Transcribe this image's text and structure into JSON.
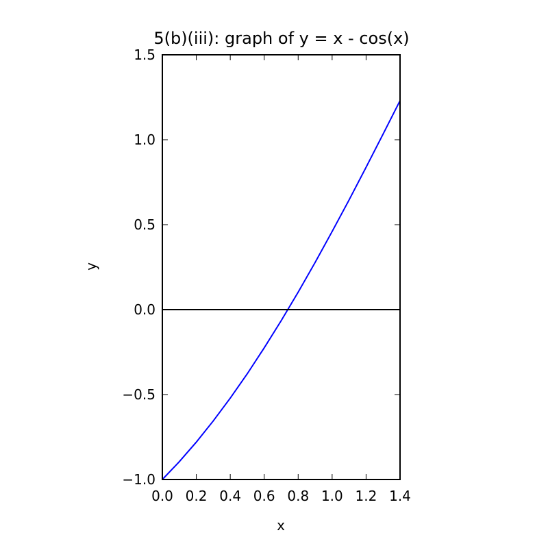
{
  "chart_data": {
    "type": "line",
    "title": "5(b)(iii): graph of y = x - cos(x)",
    "xlabel": "x",
    "ylabel": "y",
    "xlim": [
      0.0,
      1.4
    ],
    "ylim": [
      -1.0,
      1.5
    ],
    "xticks": [
      "0.0",
      "0.2",
      "0.4",
      "0.6",
      "0.8",
      "1.0",
      "1.2",
      "1.4"
    ],
    "yticks": [
      "−1.0",
      "−0.5",
      "0.0",
      "0.5",
      "1.0",
      "1.5"
    ],
    "grid": false,
    "series": [
      {
        "color": "#0000ff",
        "x": [
          0.0,
          0.1,
          0.2,
          0.3,
          0.4,
          0.5,
          0.6,
          0.7,
          0.8,
          0.9,
          1.0,
          1.1,
          1.2,
          1.3,
          1.4
        ],
        "y": [
          -1.0,
          -0.895,
          -0.78,
          -0.655,
          -0.521,
          -0.378,
          -0.225,
          -0.065,
          0.103,
          0.278,
          0.46,
          0.646,
          0.838,
          1.033,
          1.23
        ]
      },
      {
        "color": "#000000",
        "x": [
          0.0,
          1.4
        ],
        "y": [
          0.0,
          0.0
        ]
      }
    ]
  }
}
